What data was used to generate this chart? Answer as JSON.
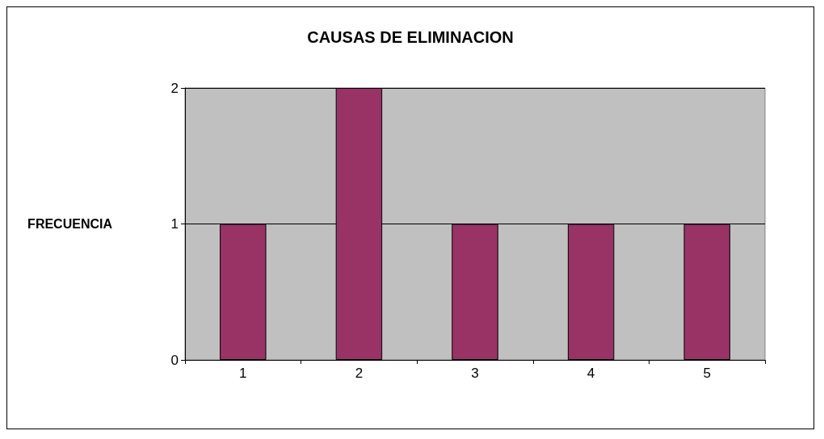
{
  "chart_data": {
    "type": "bar",
    "title": "CAUSAS DE ELIMINACION",
    "ylabel": "FRECUENCIA",
    "categories": [
      "1",
      "2",
      "3",
      "4",
      "5"
    ],
    "values": [
      1,
      2,
      1,
      1,
      1
    ],
    "color": "#993366",
    "ylim": [
      0,
      2
    ],
    "yticks": [
      0,
      1,
      2
    ],
    "grid": "y"
  }
}
